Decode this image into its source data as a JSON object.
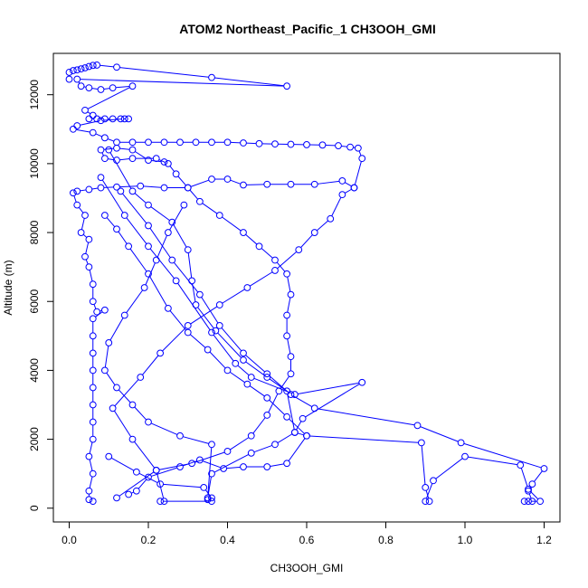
{
  "chart_data": {
    "type": "line",
    "title": "ATOM2 Northeast_Pacific_1 CH3OOH_GMI",
    "xlabel": "CH3OOH_GMI",
    "ylabel": "Altitude (m)",
    "xlim": [
      -0.04,
      1.24
    ],
    "ylim": [
      -400,
      13200
    ],
    "xticks": [
      0.0,
      0.2,
      0.4,
      0.6,
      0.8,
      1.0,
      1.2
    ],
    "xtick_labels": [
      "0.0",
      "0.2",
      "0.4",
      "0.6",
      "0.8",
      "1.0",
      "1.2"
    ],
    "yticks": [
      0,
      2000,
      4000,
      6000,
      8000,
      10000,
      12000
    ],
    "ytick_labels": [
      "0",
      "2000",
      "4000",
      "6000",
      "8000",
      "10000",
      "12000"
    ],
    "marker": "open-circle",
    "color": "#0000ff",
    "grid": false,
    "series": [
      {
        "name": "",
        "points": [
          [
            0.0,
            12450
          ],
          [
            0.0,
            12650
          ],
          [
            0.01,
            12700
          ],
          [
            0.02,
            12720
          ],
          [
            0.03,
            12750
          ],
          [
            0.04,
            12780
          ],
          [
            0.05,
            12820
          ],
          [
            0.06,
            12850
          ],
          [
            0.07,
            12860
          ],
          [
            0.12,
            12800
          ],
          [
            0.36,
            12500
          ],
          [
            0.55,
            12250
          ],
          [
            0.02,
            12450
          ],
          [
            0.03,
            12250
          ],
          [
            0.05,
            12200
          ],
          [
            0.08,
            12150
          ],
          [
            0.11,
            12200
          ],
          [
            0.16,
            12250
          ],
          [
            0.04,
            11550
          ],
          [
            0.06,
            11400
          ],
          [
            0.05,
            11300
          ],
          [
            0.07,
            11300
          ],
          [
            0.09,
            11300
          ],
          [
            0.11,
            11300
          ],
          [
            0.13,
            11300
          ],
          [
            0.15,
            11300
          ],
          [
            0.14,
            11300
          ],
          [
            0.08,
            11250
          ],
          [
            0.02,
            11100
          ],
          [
            0.01,
            11000
          ],
          [
            0.06,
            10900
          ],
          [
            0.09,
            10750
          ],
          [
            0.12,
            10620
          ],
          [
            0.16,
            10620
          ],
          [
            0.2,
            10620
          ],
          [
            0.24,
            10620
          ],
          [
            0.28,
            10620
          ],
          [
            0.32,
            10620
          ],
          [
            0.36,
            10620
          ],
          [
            0.4,
            10620
          ],
          [
            0.44,
            10600
          ],
          [
            0.48,
            10580
          ],
          [
            0.52,
            10570
          ],
          [
            0.56,
            10560
          ],
          [
            0.6,
            10550
          ],
          [
            0.64,
            10540
          ],
          [
            0.68,
            10520
          ],
          [
            0.71,
            10480
          ],
          [
            0.73,
            10450
          ],
          [
            0.74,
            10150
          ],
          [
            0.72,
            9300
          ],
          [
            0.69,
            9500
          ],
          [
            0.62,
            9400
          ],
          [
            0.56,
            9400
          ],
          [
            0.5,
            9400
          ],
          [
            0.44,
            9380
          ],
          [
            0.4,
            9550
          ],
          [
            0.36,
            9550
          ],
          [
            0.3,
            9300
          ],
          [
            0.24,
            9300
          ],
          [
            0.18,
            9350
          ],
          [
            0.12,
            9320
          ],
          [
            0.08,
            9300
          ],
          [
            0.05,
            9250
          ],
          [
            0.02,
            9200
          ],
          [
            0.01,
            9150
          ],
          [
            0.02,
            8800
          ],
          [
            0.04,
            8500
          ],
          [
            0.03,
            8000
          ],
          [
            0.05,
            7800
          ],
          [
            0.04,
            7300
          ],
          [
            0.05,
            7000
          ],
          [
            0.06,
            6500
          ],
          [
            0.06,
            6000
          ],
          [
            0.07,
            5700
          ],
          [
            0.09,
            5750
          ],
          [
            0.06,
            5500
          ],
          [
            0.06,
            5000
          ],
          [
            0.06,
            4500
          ],
          [
            0.06,
            4000
          ],
          [
            0.06,
            3500
          ],
          [
            0.06,
            3000
          ],
          [
            0.06,
            2500
          ],
          [
            0.06,
            2000
          ],
          [
            0.05,
            1500
          ],
          [
            0.06,
            1000
          ],
          [
            0.05,
            500
          ],
          [
            0.05,
            250
          ],
          [
            0.06,
            200
          ]
        ]
      },
      {
        "name": "",
        "points": [
          [
            0.12,
            300
          ],
          [
            0.22,
            1100
          ],
          [
            0.31,
            1300
          ],
          [
            0.4,
            1650
          ],
          [
            0.46,
            2100
          ],
          [
            0.5,
            2700
          ],
          [
            0.53,
            3400
          ],
          [
            0.56,
            3900
          ],
          [
            0.56,
            4400
          ],
          [
            0.55,
            5000
          ],
          [
            0.55,
            5600
          ],
          [
            0.56,
            6200
          ],
          [
            0.55,
            6800
          ],
          [
            0.52,
            7200
          ],
          [
            0.48,
            7600
          ],
          [
            0.44,
            8000
          ],
          [
            0.38,
            8500
          ],
          [
            0.33,
            8900
          ],
          [
            0.3,
            9300
          ],
          [
            0.27,
            9700
          ],
          [
            0.25,
            10000
          ],
          [
            0.22,
            10150
          ],
          [
            0.16,
            10150
          ],
          [
            0.12,
            10100
          ],
          [
            0.09,
            10150
          ],
          [
            0.08,
            10400
          ],
          [
            0.12,
            10450
          ],
          [
            0.16,
            10400
          ],
          [
            0.2,
            10100
          ],
          [
            0.24,
            10050
          ]
        ]
      },
      {
        "name": "",
        "points": [
          [
            0.1,
            1500
          ],
          [
            0.17,
            1050
          ],
          [
            0.23,
            700
          ],
          [
            0.34,
            600
          ],
          [
            0.36,
            300
          ],
          [
            0.35,
            250
          ],
          [
            0.36,
            200
          ],
          [
            0.23,
            200
          ],
          [
            0.24,
            200
          ],
          [
            0.22,
            1100
          ],
          [
            0.16,
            2000
          ],
          [
            0.11,
            2900
          ],
          [
            0.18,
            3800
          ],
          [
            0.23,
            4500
          ],
          [
            0.3,
            5300
          ],
          [
            0.38,
            5900
          ],
          [
            0.45,
            6400
          ],
          [
            0.52,
            6900
          ],
          [
            0.58,
            7500
          ],
          [
            0.62,
            8000
          ],
          [
            0.66,
            8400
          ],
          [
            0.69,
            9100
          ],
          [
            0.72,
            9300
          ]
        ]
      },
      {
        "name": "",
        "points": [
          [
            0.13,
            9200
          ],
          [
            0.2,
            8200
          ],
          [
            0.26,
            7200
          ],
          [
            0.33,
            6200
          ],
          [
            0.38,
            5300
          ],
          [
            0.44,
            4500
          ],
          [
            0.5,
            3900
          ],
          [
            0.56,
            3300
          ],
          [
            0.62,
            2900
          ],
          [
            0.88,
            2400
          ],
          [
            0.99,
            1900
          ],
          [
            1.2,
            1150
          ],
          [
            1.17,
            700
          ],
          [
            1.16,
            500
          ],
          [
            1.17,
            200
          ],
          [
            1.15,
            200
          ],
          [
            1.16,
            200
          ],
          [
            1.19,
            200
          ],
          [
            1.16,
            550
          ],
          [
            1.14,
            1250
          ],
          [
            1.0,
            1500
          ],
          [
            0.92,
            800
          ],
          [
            0.9,
            200
          ],
          [
            0.91,
            200
          ],
          [
            0.9,
            600
          ],
          [
            0.89,
            1900
          ],
          [
            0.6,
            2100
          ],
          [
            0.55,
            2650
          ],
          [
            0.5,
            3200
          ],
          [
            0.45,
            3600
          ],
          [
            0.4,
            4000
          ],
          [
            0.35,
            4600
          ],
          [
            0.3,
            5100
          ],
          [
            0.25,
            5800
          ],
          [
            0.2,
            6800
          ],
          [
            0.15,
            7600
          ],
          [
            0.12,
            8100
          ],
          [
            0.09,
            8500
          ]
        ]
      },
      {
        "name": "",
        "points": [
          [
            0.08,
            9600
          ],
          [
            0.14,
            8500
          ],
          [
            0.2,
            7600
          ],
          [
            0.27,
            6600
          ],
          [
            0.36,
            5100
          ],
          [
            0.42,
            4200
          ],
          [
            0.46,
            3800
          ],
          [
            0.57,
            3300
          ],
          [
            0.74,
            3650
          ],
          [
            0.59,
            2600
          ],
          [
            0.57,
            2200
          ],
          [
            0.52,
            1850
          ],
          [
            0.46,
            1600
          ],
          [
            0.36,
            1000
          ],
          [
            0.35,
            300
          ],
          [
            0.36,
            1850
          ],
          [
            0.28,
            2100
          ],
          [
            0.2,
            2500
          ],
          [
            0.16,
            3000
          ],
          [
            0.12,
            3500
          ],
          [
            0.09,
            4000
          ],
          [
            0.1,
            4800
          ],
          [
            0.14,
            5600
          ],
          [
            0.19,
            6400
          ],
          [
            0.22,
            7200
          ],
          [
            0.25,
            8000
          ],
          [
            0.29,
            8800
          ]
        ]
      },
      {
        "name": "",
        "points": [
          [
            0.1,
            10400
          ],
          [
            0.16,
            9200
          ],
          [
            0.2,
            8800
          ],
          [
            0.26,
            8300
          ],
          [
            0.3,
            7500
          ],
          [
            0.31,
            6600
          ],
          [
            0.32,
            5900
          ],
          [
            0.37,
            5150
          ],
          [
            0.44,
            4300
          ],
          [
            0.5,
            3800
          ],
          [
            0.55,
            3400
          ],
          [
            0.57,
            2200
          ],
          [
            0.6,
            2100
          ],
          [
            0.55,
            1300
          ],
          [
            0.5,
            1200
          ],
          [
            0.44,
            1200
          ],
          [
            0.39,
            1150
          ],
          [
            0.33,
            1400
          ],
          [
            0.28,
            1200
          ],
          [
            0.2,
            900
          ],
          [
            0.17,
            500
          ],
          [
            0.15,
            400
          ]
        ]
      }
    ]
  }
}
